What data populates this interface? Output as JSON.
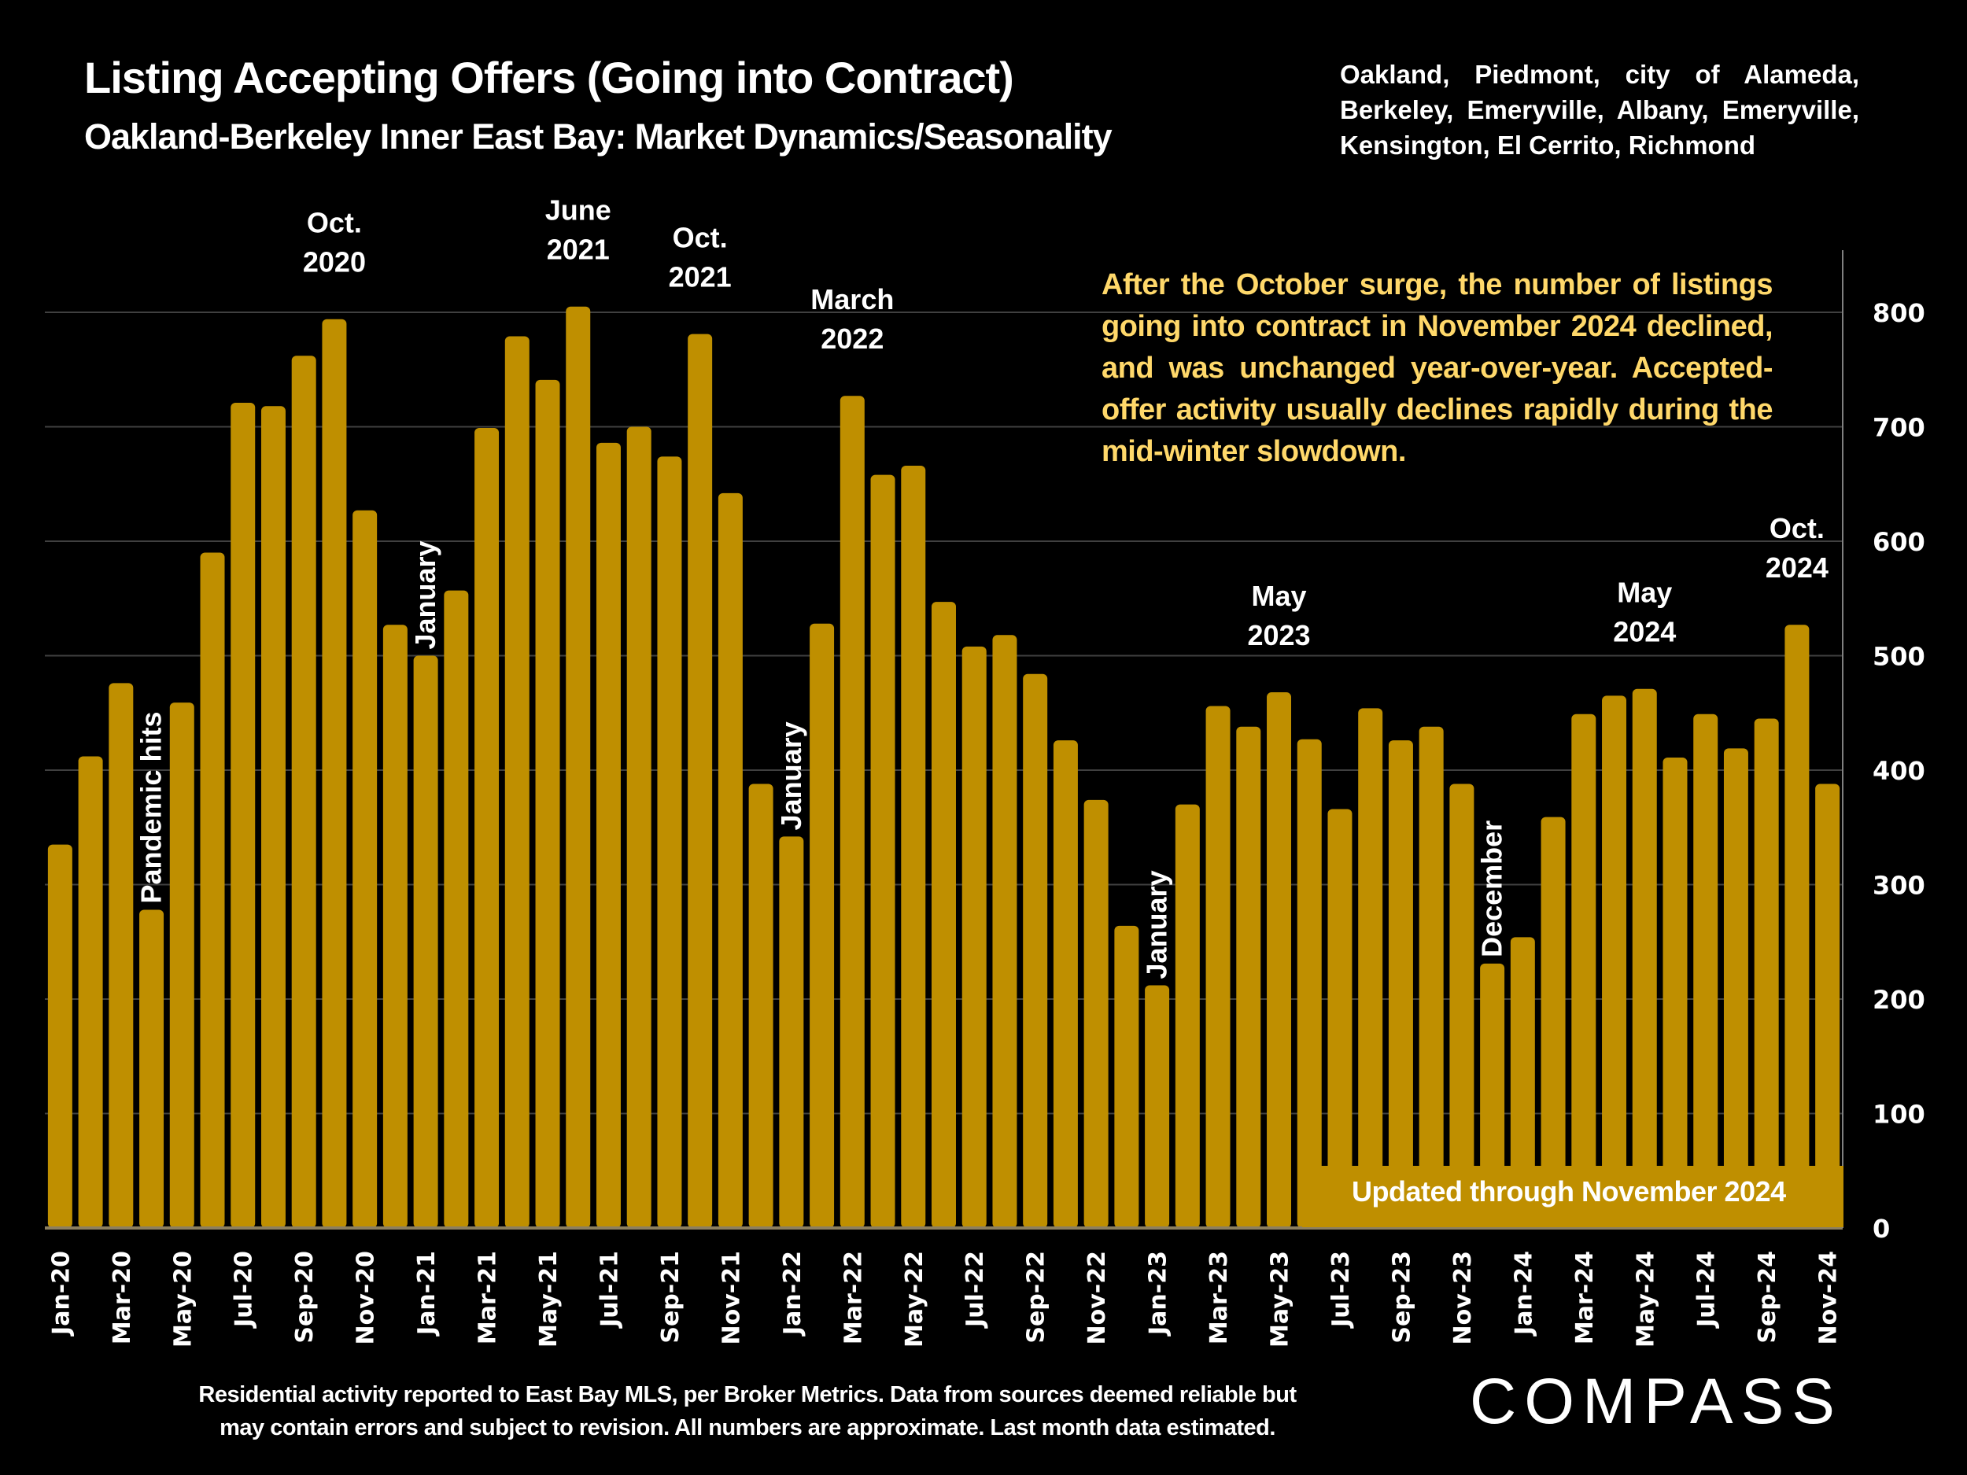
{
  "header": {
    "title": "Listing Accepting Offers (Going into Contract)",
    "subtitle": "Oakland-Berkeley Inner East Bay: Market Dynamics/Seasonality",
    "areas": "Oakland, Piedmont, city of Alameda, Berkeley, Emeryville, Albany, Emeryville, Kensington, El Cerrito, Richmond"
  },
  "commentary": "After the October surge, the number of listings going into contract in November 2024 declined, and was unchanged year-over-year. Accepted-offer activity usually declines rapidly during the mid-winter slowdown.",
  "updated_label": "Updated through November 2024",
  "footnote": {
    "line1": "Residential activity reported to East Bay MLS, per Broker Metrics. Data from sources deemed reliable but",
    "line2": "may contain errors and subject to revision. All numbers are approximate. Last month data estimated."
  },
  "logo": "COMPASS",
  "colors": {
    "bar": "#bf8f00",
    "background": "#000000",
    "commentary": "#ffd86a",
    "gridline": "#404040",
    "text": "#ffffff"
  },
  "chart_data": {
    "type": "bar",
    "title": "Listing Accepting Offers (Going into Contract)",
    "xlabel": "",
    "ylabel": "",
    "ylim": [
      0,
      800
    ],
    "yticks": [
      0,
      100,
      200,
      300,
      400,
      500,
      600,
      700,
      800
    ],
    "y_axis_side": "right",
    "grid": true,
    "categories": [
      "Jan-20",
      "Feb-20",
      "Mar-20",
      "Apr-20",
      "May-20",
      "Jun-20",
      "Jul-20",
      "Aug-20",
      "Sep-20",
      "Oct-20",
      "Nov-20",
      "Dec-20",
      "Jan-21",
      "Feb-21",
      "Mar-21",
      "Apr-21",
      "May-21",
      "Jun-21",
      "Jul-21",
      "Aug-21",
      "Sep-21",
      "Oct-21",
      "Nov-21",
      "Dec-21",
      "Jan-22",
      "Feb-22",
      "Mar-22",
      "Apr-22",
      "May-22",
      "Jun-22",
      "Jul-22",
      "Aug-22",
      "Sep-22",
      "Oct-22",
      "Nov-22",
      "Dec-22",
      "Jan-23",
      "Feb-23",
      "Mar-23",
      "Apr-23",
      "May-23",
      "Jun-23",
      "Jul-23",
      "Aug-23",
      "Sep-23",
      "Oct-23",
      "Nov-23",
      "Dec-23",
      "Jan-24",
      "Feb-24",
      "Mar-24",
      "Apr-24",
      "May-24",
      "Jun-24",
      "Jul-24",
      "Aug-24",
      "Sep-24",
      "Oct-24",
      "Nov-24"
    ],
    "tick_labels_shown": [
      "Jan-20",
      "Mar-20",
      "May-20",
      "Jul-20",
      "Sep-20",
      "Nov-20",
      "Jan-21",
      "Mar-21",
      "May-21",
      "Jul-21",
      "Sep-21",
      "Nov-21",
      "Jan-22",
      "Mar-22",
      "May-22",
      "Jul-22",
      "Sep-22",
      "Nov-22",
      "Jan-23",
      "Mar-23",
      "May-23",
      "Jul-23",
      "Sep-23",
      "Nov-23",
      "Jan-24",
      "Mar-24",
      "May-24",
      "Jul-24",
      "Sep-24",
      "Nov-24"
    ],
    "values": [
      335,
      412,
      476,
      278,
      459,
      590,
      721,
      718,
      762,
      794,
      627,
      527,
      500,
      557,
      699,
      779,
      741,
      805,
      686,
      700,
      674,
      781,
      642,
      388,
      342,
      528,
      727,
      658,
      666,
      547,
      508,
      518,
      484,
      426,
      374,
      264,
      212,
      370,
      456,
      438,
      468,
      427,
      366,
      454,
      426,
      438,
      388,
      231,
      254,
      359,
      449,
      465,
      471,
      411,
      449,
      419,
      445,
      527,
      388
    ],
    "annotations": [
      {
        "text": "Pandemic hits",
        "at": "Apr-20",
        "orientation": "vertical"
      },
      {
        "text": "Oct.\n2020",
        "at": "Oct-20",
        "orientation": "horizontal"
      },
      {
        "text": "January",
        "at": "Jan-21",
        "orientation": "vertical"
      },
      {
        "text": "June\n2021",
        "at": "Jun-21",
        "orientation": "horizontal"
      },
      {
        "text": "Oct.\n2021",
        "at": "Oct-21",
        "orientation": "horizontal"
      },
      {
        "text": "January",
        "at": "Jan-22",
        "orientation": "vertical"
      },
      {
        "text": "March\n2022",
        "at": "Mar-22",
        "orientation": "horizontal"
      },
      {
        "text": "January",
        "at": "Jan-23",
        "orientation": "vertical"
      },
      {
        "text": "May\n2023",
        "at": "May-23",
        "orientation": "horizontal"
      },
      {
        "text": "December",
        "at": "Dec-23",
        "orientation": "vertical"
      },
      {
        "text": "May\n2024",
        "at": "May-24",
        "orientation": "horizontal"
      },
      {
        "text": "Oct.\n2024",
        "at": "Oct-24",
        "orientation": "horizontal"
      }
    ]
  }
}
